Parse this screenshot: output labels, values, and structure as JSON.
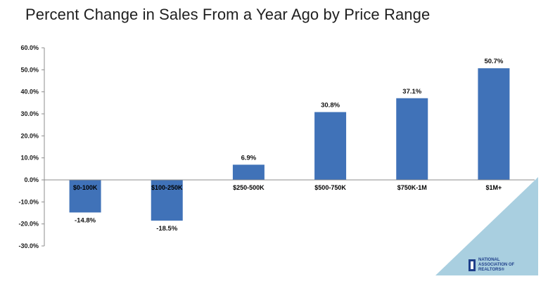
{
  "chart_data": {
    "type": "bar",
    "title": "Percent Change in Sales From a Year Ago by Price Range",
    "categories": [
      "$0-100K",
      "$100-250K",
      "$250-500K",
      "$500-750K",
      "$750K-1M",
      "$1M+"
    ],
    "values": [
      -14.8,
      -18.5,
      6.9,
      30.8,
      37.1,
      50.7
    ],
    "data_labels": [
      "-14.8%",
      "-18.5%",
      "6.9%",
      "30.8%",
      "37.1%",
      "50.7%"
    ],
    "yticks": [
      "60.0%",
      "50.0%",
      "40.0%",
      "30.0%",
      "20.0%",
      "10.0%",
      "0.0%",
      "-10.0%",
      "-20.0%",
      "-30.0%"
    ],
    "ylim": [
      -30,
      60
    ],
    "xlabel": "",
    "ylabel": "",
    "grid": false,
    "legend": "none",
    "bar_color": "#4072b8"
  },
  "branding": {
    "logo_lines": [
      "NATIONAL",
      "ASSOCIATION OF",
      "REALTORS®"
    ],
    "triangle_color": "#a9cfe0"
  }
}
